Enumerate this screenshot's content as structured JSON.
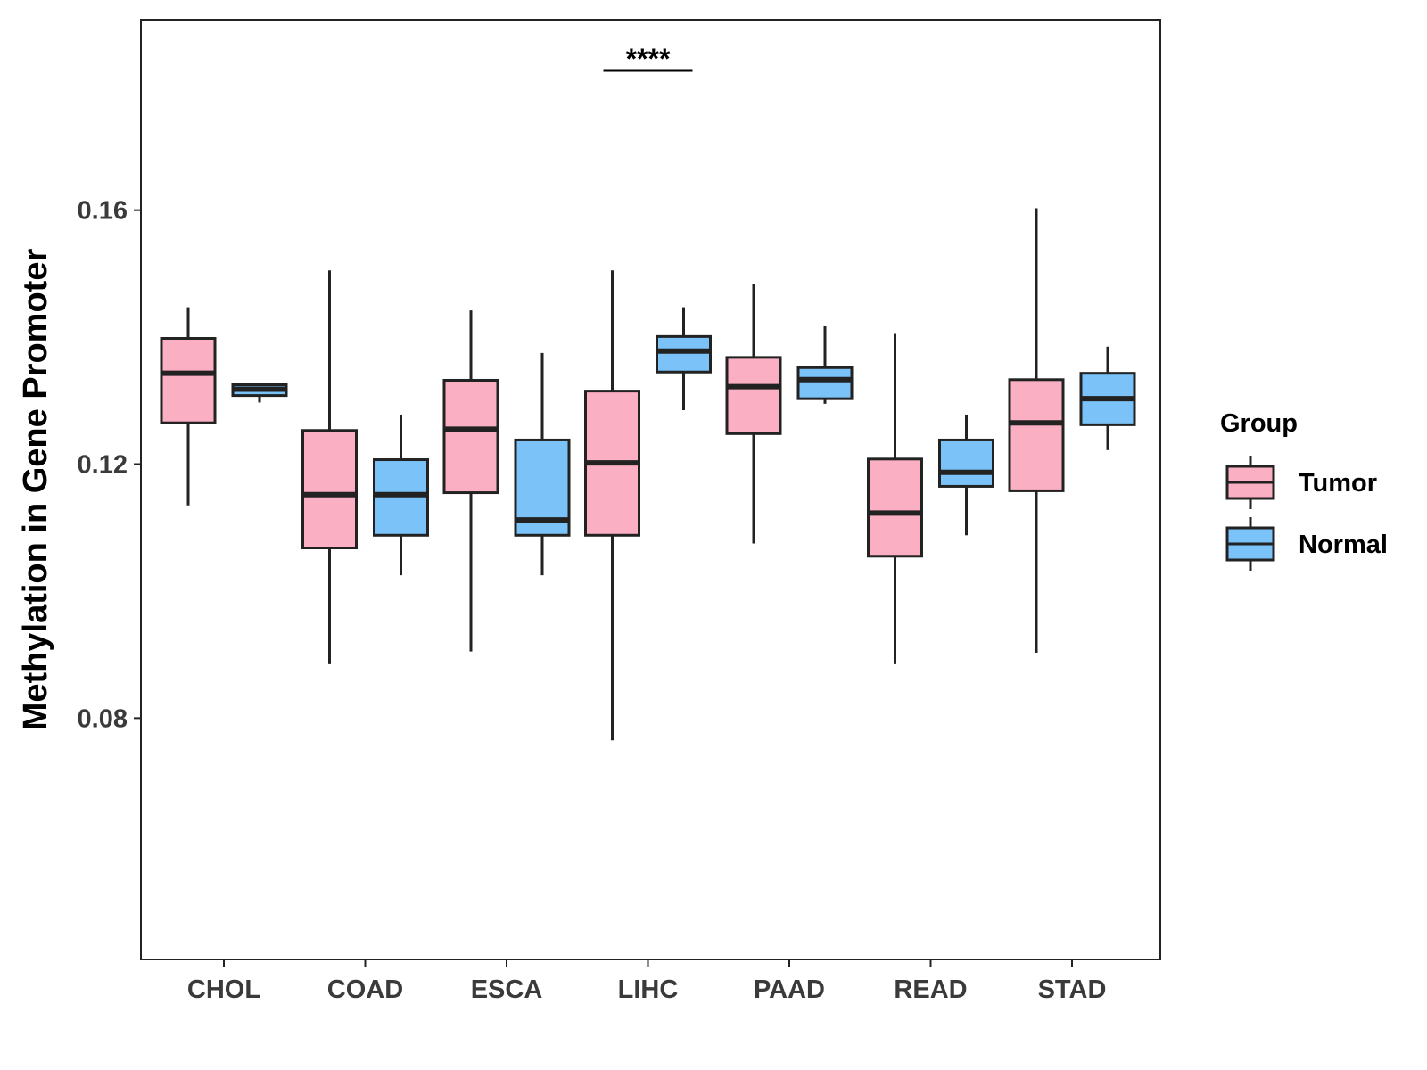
{
  "chart_data": {
    "type": "boxplot",
    "title": "",
    "xlabel": "",
    "ylabel": "Methylation in Gene Promoter",
    "ylim": [
      0.042,
      0.19
    ],
    "yticks": [
      0.08,
      0.12,
      0.16
    ],
    "ytick_labels": [
      "0.08",
      "0.12",
      "0.16"
    ],
    "categories": [
      "CHOL",
      "COAD",
      "ESCA",
      "LIHC",
      "PAAD",
      "READ",
      "STAD"
    ],
    "legend": {
      "title": "Group",
      "position": "right",
      "items": [
        {
          "key": "Tumor",
          "label": "Tumor",
          "color": "#FBAFC2"
        },
        {
          "key": "Normal",
          "label": "Normal",
          "color": "#7AC2F8"
        }
      ]
    },
    "series": [
      {
        "name": "Tumor",
        "color": "#FBAFC2",
        "boxes": [
          {
            "category": "CHOL",
            "whisker_low": 0.1135,
            "q1": 0.1265,
            "median": 0.1343,
            "q3": 0.1398,
            "whisker_high": 0.1447
          },
          {
            "category": "COAD",
            "whisker_low": 0.0885,
            "q1": 0.1068,
            "median": 0.1152,
            "q3": 0.1253,
            "whisker_high": 0.1505
          },
          {
            "category": "ESCA",
            "whisker_low": 0.0905,
            "q1": 0.1155,
            "median": 0.1255,
            "q3": 0.1332,
            "whisker_high": 0.1442
          },
          {
            "category": "LIHC",
            "whisker_low": 0.0765,
            "q1": 0.1088,
            "median": 0.1202,
            "q3": 0.1315,
            "whisker_high": 0.1505
          },
          {
            "category": "PAAD",
            "whisker_low": 0.1075,
            "q1": 0.1248,
            "median": 0.1322,
            "q3": 0.1368,
            "whisker_high": 0.1484
          },
          {
            "category": "READ",
            "whisker_low": 0.0885,
            "q1": 0.1055,
            "median": 0.1123,
            "q3": 0.1208,
            "whisker_high": 0.1405
          },
          {
            "category": "STAD",
            "whisker_low": 0.0903,
            "q1": 0.1158,
            "median": 0.1265,
            "q3": 0.1333,
            "whisker_high": 0.1603
          }
        ]
      },
      {
        "name": "Normal",
        "color": "#7AC2F8",
        "boxes": [
          {
            "category": "CHOL",
            "whisker_low": 0.1297,
            "q1": 0.1308,
            "median": 0.1318,
            "q3": 0.1325,
            "whisker_high": 0.1327
          },
          {
            "category": "COAD",
            "whisker_low": 0.1025,
            "q1": 0.1088,
            "median": 0.1152,
            "q3": 0.1207,
            "whisker_high": 0.1278
          },
          {
            "category": "ESCA",
            "whisker_low": 0.1025,
            "q1": 0.1088,
            "median": 0.1112,
            "q3": 0.1238,
            "whisker_high": 0.1375
          },
          {
            "category": "LIHC",
            "whisker_low": 0.1285,
            "q1": 0.1345,
            "median": 0.1378,
            "q3": 0.1401,
            "whisker_high": 0.1447
          },
          {
            "category": "PAAD",
            "whisker_low": 0.1295,
            "q1": 0.1303,
            "median": 0.1333,
            "q3": 0.1352,
            "whisker_high": 0.1417
          },
          {
            "category": "READ",
            "whisker_low": 0.1088,
            "q1": 0.1165,
            "median": 0.1187,
            "q3": 0.1238,
            "whisker_high": 0.1278
          },
          {
            "category": "STAD",
            "whisker_low": 0.1222,
            "q1": 0.1262,
            "median": 0.1303,
            "q3": 0.1343,
            "whisker_high": 0.1385
          }
        ]
      }
    ],
    "annotations": [
      {
        "category": "LIHC",
        "label": "****",
        "y": 0.182
      }
    ]
  }
}
